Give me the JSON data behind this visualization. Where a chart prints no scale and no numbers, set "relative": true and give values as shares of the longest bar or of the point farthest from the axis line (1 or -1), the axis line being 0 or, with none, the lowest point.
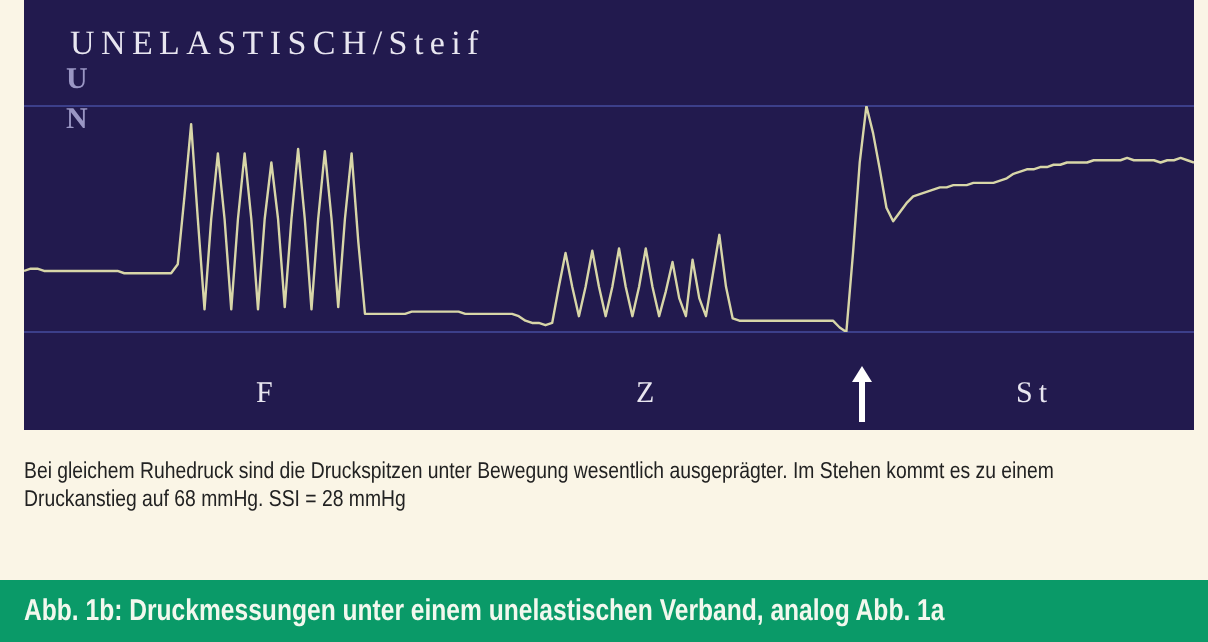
{
  "chart_data": {
    "type": "line",
    "relative": true,
    "title": "Abb. 1b: Druckmessungen unter einem unelastischen Verband, analog Abb. 1a",
    "annotations": [
      "UNELASTISCH/Steif",
      "U",
      "N",
      "F",
      "Z",
      "St",
      "Bei gleichem Ruhedruck sind die Druckspitzen unter Bewegung wesentlich ausgeprägter. Im Stehen kommt es zu einem Druckanstieg auf 68 mmHg. SSI = 28 mmHg"
    ],
    "categories": [
      null,
      null,
      null,
      null,
      null,
      null,
      null,
      null,
      null,
      null,
      null,
      null,
      null,
      null,
      null,
      null,
      null,
      null,
      null,
      null,
      null,
      null,
      null,
      null,
      null,
      null,
      null,
      null,
      null,
      null,
      null,
      null,
      null,
      null,
      null,
      null,
      null,
      null,
      null,
      null,
      null,
      null,
      null,
      null,
      null,
      null,
      null,
      null,
      null,
      null,
      null,
      null,
      null,
      null,
      null,
      null,
      null,
      null,
      null,
      null,
      null,
      null,
      null,
      null,
      null,
      null,
      null,
      null,
      null,
      null,
      null,
      null,
      null,
      null,
      null,
      null,
      null,
      null,
      null,
      null,
      null,
      null,
      null,
      null,
      null,
      null,
      null,
      null,
      null,
      null,
      null,
      null,
      null,
      null,
      null,
      null,
      null,
      null,
      null,
      null,
      null,
      null,
      null,
      null,
      null,
      null,
      null,
      null,
      null,
      null,
      null,
      null,
      null,
      null,
      null,
      null,
      null,
      null,
      null,
      null,
      null,
      null,
      null,
      null,
      null,
      null,
      null,
      null,
      null,
      null,
      null,
      null,
      null,
      null,
      null,
      null,
      null,
      null,
      null,
      null,
      null,
      null,
      null,
      null,
      null,
      null,
      null,
      null,
      null,
      null,
      null,
      null,
      null,
      null,
      null,
      null,
      null,
      null,
      null,
      null,
      null,
      null,
      null,
      null,
      null,
      null,
      null,
      null,
      null,
      null,
      null,
      null,
      null,
      null,
      null,
      null
    ],
    "series": [
      {
        "color": "#d8d6a8",
        "values": [
          0.27,
          0.28,
          0.28,
          0.27,
          0.27,
          0.27,
          0.27,
          0.27,
          0.27,
          0.27,
          0.27,
          0.27,
          0.27,
          0.27,
          0.27,
          0.26,
          0.26,
          0.26,
          0.26,
          0.26,
          0.26,
          0.26,
          0.26,
          0.3,
          0.6,
          0.92,
          0.5,
          0.1,
          0.5,
          0.79,
          0.5,
          0.1,
          0.5,
          0.79,
          0.5,
          0.1,
          0.5,
          0.75,
          0.5,
          0.11,
          0.5,
          0.81,
          0.5,
          0.1,
          0.5,
          0.8,
          0.5,
          0.11,
          0.5,
          0.79,
          0.4,
          0.08,
          0.08,
          0.08,
          0.08,
          0.08,
          0.08,
          0.08,
          0.09,
          0.09,
          0.09,
          0.09,
          0.09,
          0.09,
          0.09,
          0.09,
          0.08,
          0.08,
          0.08,
          0.08,
          0.08,
          0.08,
          0.08,
          0.08,
          0.07,
          0.05,
          0.04,
          0.04,
          0.03,
          0.04,
          0.2,
          0.35,
          0.2,
          0.07,
          0.2,
          0.36,
          0.2,
          0.07,
          0.2,
          0.37,
          0.2,
          0.07,
          0.2,
          0.37,
          0.2,
          0.07,
          0.18,
          0.31,
          0.15,
          0.07,
          0.32,
          0.15,
          0.07,
          0.25,
          0.43,
          0.2,
          0.06,
          0.05,
          0.05,
          0.05,
          0.05,
          0.05,
          0.05,
          0.05,
          0.05,
          0.05,
          0.05,
          0.05,
          0.05,
          0.05,
          0.05,
          0.05,
          0.02,
          0,
          0.35,
          0.75,
          1,
          0.88,
          0.72,
          0.55,
          0.49,
          0.53,
          0.57,
          0.6,
          0.61,
          0.62,
          0.63,
          0.64,
          0.64,
          0.65,
          0.65,
          0.65,
          0.66,
          0.66,
          0.66,
          0.66,
          0.67,
          0.68,
          0.7,
          0.71,
          0.72,
          0.72,
          0.73,
          0.73,
          0.74,
          0.74,
          0.75,
          0.75,
          0.75,
          0.75,
          0.76,
          0.76,
          0.76,
          0.76,
          0.76,
          0.77,
          0.76,
          0.76,
          0.76,
          0.76,
          0.75,
          0.76,
          0.76,
          0.77,
          0.76,
          0.75
        ]
      }
    ],
    "grid": "y",
    "marker": "none",
    "line_style": "solid",
    "legend": false
  }
}
